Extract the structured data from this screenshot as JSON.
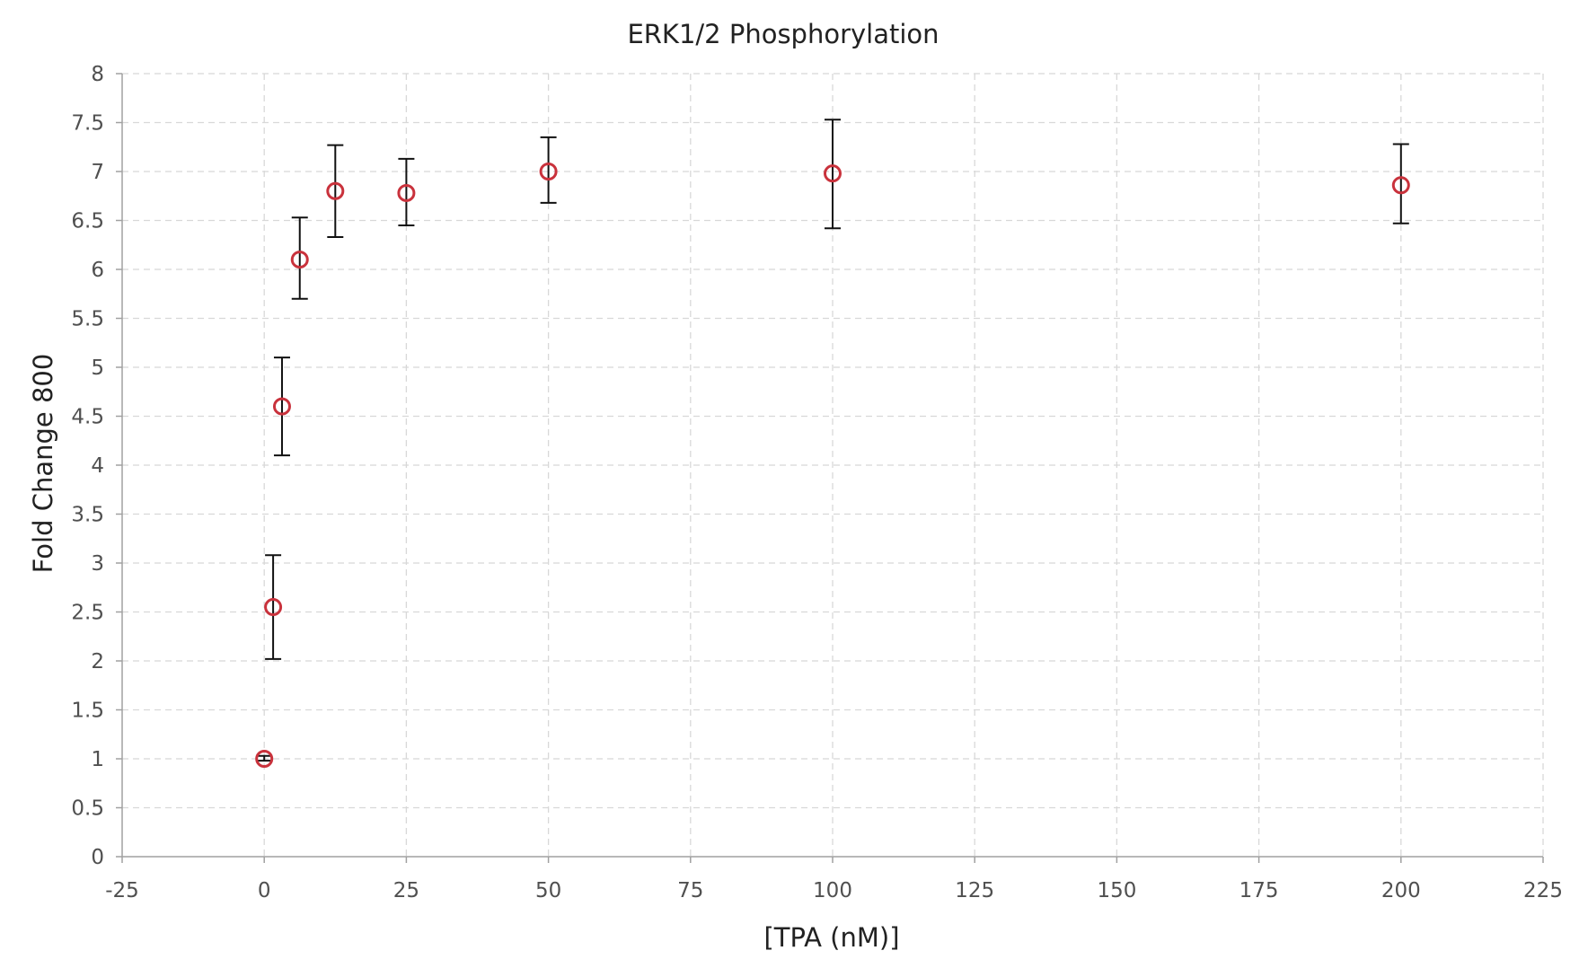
{
  "chart_data": {
    "type": "scatter",
    "title": "ERK1/2 Phosphorylation",
    "xlabel": "[TPA (nM)]",
    "ylabel": "Fold Change 800",
    "xlim": [
      -25,
      225
    ],
    "ylim": [
      0,
      8
    ],
    "x_ticks": [
      -25,
      0,
      25,
      50,
      75,
      100,
      125,
      150,
      175,
      200,
      225
    ],
    "y_ticks": [
      0,
      0.5,
      1,
      1.5,
      2,
      2.5,
      3,
      3.5,
      4,
      4.5,
      5,
      5.5,
      6,
      6.5,
      7,
      7.5,
      8
    ],
    "grid": true,
    "legend": "none",
    "series": [
      {
        "marker": "open-circle",
        "color": "#c9323c",
        "errorbar_color": "#111111",
        "x": [
          0,
          1.5625,
          3.125,
          6.25,
          12.5,
          25,
          50,
          100,
          200
        ],
        "y": [
          1.0,
          2.55,
          4.6,
          6.1,
          6.8,
          6.78,
          7.0,
          6.98,
          6.86
        ],
        "err_low": [
          0.98,
          2.02,
          4.1,
          5.7,
          6.33,
          6.45,
          6.68,
          6.42,
          6.47
        ],
        "err_high": [
          1.03,
          3.08,
          5.1,
          6.53,
          7.27,
          7.13,
          7.35,
          7.53,
          7.28
        ]
      }
    ]
  },
  "colors": {
    "marker": "#c9323c",
    "errorbar": "#111111",
    "grid": "#d8d8d8",
    "axis": "#a0a0a0"
  }
}
